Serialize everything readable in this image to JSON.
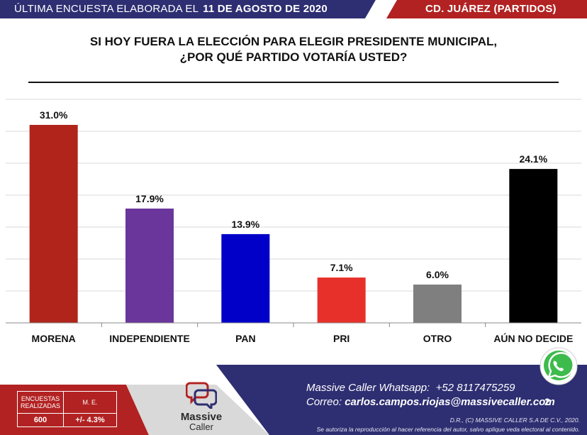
{
  "header": {
    "left_label": "ÚLTIMA ENCUESTA ELABORADA EL",
    "date": "11 DE AGOSTO DE 2020",
    "right_label": "CD. JUÁREZ (PARTIDOS)",
    "colors": {
      "dark": "#2e2e72",
      "red": "#b22222"
    }
  },
  "title_lines": [
    "SI HOY FUERA LA ELECCIÓN PARA ELEGIR PRESIDENTE MUNICIPAL,",
    "¿POR QUÉ PARTIDO VOTARÍA USTED?"
  ],
  "chart_data": {
    "type": "bar",
    "categories": [
      "MORENA",
      "INDEPENDIENTE",
      "PAN",
      "PRI",
      "OTRO",
      "AÚN NO DECIDE"
    ],
    "values": [
      31.0,
      17.9,
      13.9,
      7.1,
      6.0,
      24.1
    ],
    "data_labels": [
      "31.0%",
      "17.9%",
      "13.9%",
      "7.1%",
      "6.0%",
      "24.1%"
    ],
    "colors": [
      "#b0241b",
      "#6a369c",
      "#0000c8",
      "#e8302a",
      "#7f7f7f",
      "#000000"
    ],
    "ylim": [
      0,
      35
    ],
    "grid": true,
    "legend": "none"
  },
  "footer": {
    "logo_name": "Massive",
    "logo_sub": "Caller",
    "whatsapp_label": "Massive Caller Whatsapp:",
    "whatsapp_number": "+52 8117475259",
    "email_label": "Correo:",
    "email": "carlos.campos.riojas@massivecaller.com",
    "page_number": "2",
    "legal_line1": "D.R., (C) MASSIVE CALLER S.A DE C.V., 2020.",
    "legal_line2": "Se autoriza la reproducción al hacer referencia del autor, salvo aplique veda electoral al contenido.",
    "stats": {
      "surveys_label": "ENCUESTAS REALIZADAS",
      "surveys_value": "600",
      "me_label": "M. E.",
      "me_value": "+/- 4.3%"
    }
  }
}
